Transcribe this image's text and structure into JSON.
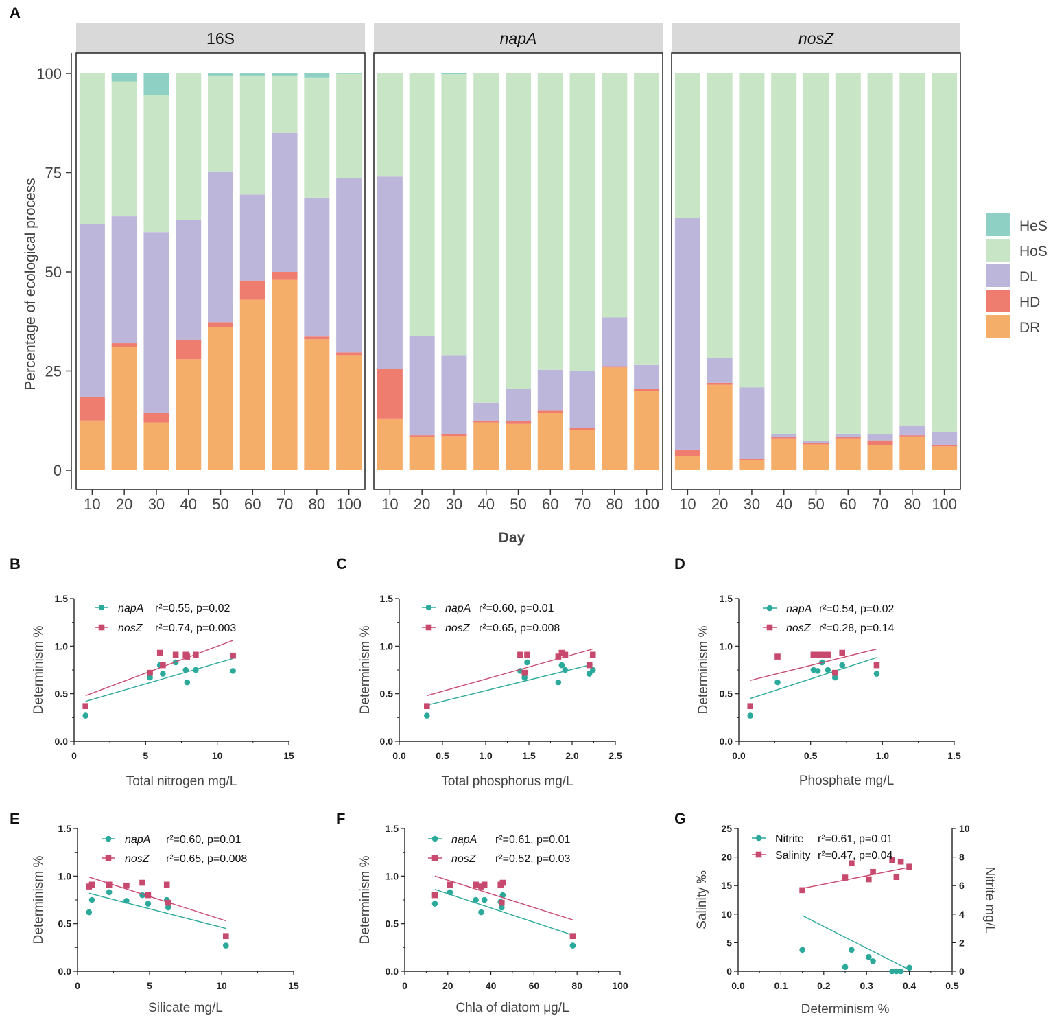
{
  "panel_labels": {
    "A": "A",
    "B": "B",
    "C": "C",
    "D": "D",
    "E": "E",
    "F": "F",
    "G": "G"
  },
  "colors": {
    "HeS": "#8ED0C4",
    "HoS": "#C8E5C6",
    "DL": "#BCB7DA",
    "HD": "#EE7D70",
    "DR": "#F5AD6A",
    "napA": "#2BA99B",
    "nosZ": "#C74A6E",
    "strip": "#d9d9d9"
  },
  "chart_data": [
    {
      "id": "A",
      "type": "bar",
      "stacked": true,
      "ylabel": "Percentage of ecological process",
      "xlabel": "Day",
      "ylim": [
        0,
        100
      ],
      "yticks": [
        "0",
        "25",
        "50",
        "75",
        "100"
      ],
      "categories": [
        "10",
        "20",
        "30",
        "40",
        "50",
        "60",
        "70",
        "80",
        "100"
      ],
      "legend": [
        "HeS",
        "HoS",
        "DL",
        "HD",
        "DR"
      ],
      "stack_order": [
        "DR",
        "HD",
        "DL",
        "HoS",
        "HeS"
      ],
      "facets": [
        {
          "title": "16S",
          "italic": false,
          "series": {
            "DR": [
              12.5,
              31,
              12,
              28,
              36,
              43,
              48,
              33,
              29
            ],
            "HD": [
              6,
              1,
              2.5,
              4.8,
              1.3,
              4.8,
              2,
              0.7,
              0.7
            ],
            "DL": [
              43.5,
              32,
              45.5,
              30.2,
              38,
              21.7,
              35,
              35,
              44
            ],
            "HoS": [
              38,
              34,
              34.5,
              37,
              24.2,
              30,
              14.5,
              30.3,
              26.2
            ],
            "HeS": [
              0,
              2,
              5.5,
              0,
              0.5,
              0.5,
              0.5,
              1,
              0.1
            ]
          }
        },
        {
          "title": "napA",
          "italic": true,
          "series": {
            "DR": [
              13,
              8.3,
              8.6,
              12,
              11.8,
              14.5,
              10.1,
              25.9,
              20
            ],
            "HD": [
              12.5,
              0.5,
              0.4,
              0.5,
              0.5,
              0.5,
              0.5,
              0.3,
              0.5
            ],
            "DL": [
              48.5,
              25,
              20,
              4.5,
              8.2,
              10.3,
              14.4,
              12.3,
              6
            ],
            "HoS": [
              26,
              66.2,
              70.8,
              83,
              79.5,
              74.7,
              75,
              61.5,
              73.5
            ],
            "HeS": [
              0,
              0,
              0.2,
              0,
              0,
              0,
              0,
              0,
              0
            ]
          }
        },
        {
          "title": "nosZ",
          "italic": true,
          "series": {
            "DR": [
              3.5,
              21.5,
              2.6,
              8,
              6.5,
              8,
              6.3,
              8.5,
              6
            ],
            "HD": [
              1.7,
              0.5,
              0.3,
              0.3,
              0.3,
              0.3,
              1.2,
              0.3,
              0.3
            ],
            "DL": [
              58.3,
              6.3,
              18,
              0.8,
              0.6,
              0.9,
              1.6,
              2.5,
              3.4
            ],
            "HoS": [
              36.5,
              71.7,
              79.1,
              90.9,
              92.6,
              90.8,
              90.9,
              88.7,
              90.3
            ],
            "HeS": [
              0,
              0,
              0,
              0,
              0,
              0,
              0,
              0,
              0
            ]
          }
        }
      ]
    },
    {
      "id": "B",
      "type": "scatter",
      "xlabel": "Total nitrogen mg/L",
      "ylabel": "Determinism %",
      "xlim": [
        0,
        15
      ],
      "ylim": [
        0,
        1.5
      ],
      "xticks": [
        "0",
        "5",
        "10",
        "15"
      ],
      "yticks": [
        "0.0",
        "0.5",
        "1.0",
        "1.5"
      ],
      "series": [
        {
          "name": "napA",
          "stat": "r²=0.55, p=0.02",
          "marker": "circle",
          "x": [
            0.8,
            5.3,
            6,
            6.2,
            7.1,
            7.8,
            7.9,
            8.5,
            11.1
          ],
          "y": [
            0.27,
            0.67,
            0.8,
            0.71,
            0.83,
            0.75,
            0.62,
            0.75,
            0.74
          ],
          "fit": [
            [
              0.8,
              0.42
            ],
            [
              11.1,
              0.87
            ]
          ]
        },
        {
          "name": "nosZ",
          "stat": "r²=0.74, p=0.003",
          "marker": "square",
          "x": [
            0.8,
            5.3,
            6,
            6.2,
            7.1,
            7.8,
            7.9,
            8.5,
            11.1
          ],
          "y": [
            0.37,
            0.72,
            0.93,
            0.8,
            0.91,
            0.91,
            0.89,
            0.91,
            0.9
          ],
          "fit": [
            [
              0.8,
              0.48
            ],
            [
              11.1,
              1.06
            ]
          ]
        }
      ]
    },
    {
      "id": "C",
      "type": "scatter",
      "xlabel": "Total phosphorus mg/L",
      "ylabel": "Determinism %",
      "xlim": [
        0,
        2.5
      ],
      "ylim": [
        0,
        1.5
      ],
      "xticks": [
        "0.0",
        "0.5",
        "1.0",
        "1.5",
        "2.0",
        "2.5"
      ],
      "yticks": [
        "0.0",
        "0.5",
        "1.0",
        "1.5"
      ],
      "series": [
        {
          "name": "napA",
          "stat": "r²=0.60, p=0.01",
          "marker": "circle",
          "x": [
            0.32,
            1.4,
            1.45,
            1.48,
            1.84,
            1.88,
            1.92,
            2.2,
            2.24
          ],
          "y": [
            0.27,
            0.74,
            0.67,
            0.83,
            0.62,
            0.8,
            0.75,
            0.71,
            0.75
          ],
          "fit": [
            [
              0.32,
              0.38
            ],
            [
              2.24,
              0.81
            ]
          ]
        },
        {
          "name": "nosZ",
          "stat": "r²=0.65, p=0.008",
          "marker": "square",
          "x": [
            0.32,
            1.4,
            1.45,
            1.48,
            1.84,
            1.88,
            1.92,
            2.2,
            2.24
          ],
          "y": [
            0.37,
            0.91,
            0.72,
            0.91,
            0.89,
            0.93,
            0.91,
            0.8,
            0.91
          ],
          "fit": [
            [
              0.32,
              0.48
            ],
            [
              2.24,
              0.97
            ]
          ]
        }
      ]
    },
    {
      "id": "D",
      "type": "scatter",
      "xlabel": "Phosphate  mg/L",
      "ylabel": "Determinism %",
      "xlim": [
        0,
        1.5
      ],
      "ylim": [
        0,
        1.5
      ],
      "xticks": [
        "0.0",
        "0.5",
        "1.0",
        "1.5"
      ],
      "yticks": [
        "0.0",
        "0.5",
        "1.0",
        "1.5"
      ],
      "series": [
        {
          "name": "napA",
          "stat": "r²=0.54, p=0.02",
          "marker": "circle",
          "x": [
            0.08,
            0.27,
            0.52,
            0.55,
            0.58,
            0.62,
            0.67,
            0.72,
            0.96
          ],
          "y": [
            0.27,
            0.62,
            0.75,
            0.74,
            0.83,
            0.75,
            0.67,
            0.8,
            0.71
          ],
          "fit": [
            [
              0.08,
              0.45
            ],
            [
              0.96,
              0.88
            ]
          ]
        },
        {
          "name": "nosZ",
          "stat": "r²=0.28, p=0.14",
          "marker": "square",
          "x": [
            0.08,
            0.27,
            0.52,
            0.55,
            0.58,
            0.62,
            0.67,
            0.72,
            0.96
          ],
          "y": [
            0.37,
            0.89,
            0.91,
            0.91,
            0.91,
            0.91,
            0.72,
            0.93,
            0.8
          ],
          "fit": [
            [
              0.08,
              0.64
            ],
            [
              0.96,
              0.97
            ]
          ]
        }
      ]
    },
    {
      "id": "E",
      "type": "scatter",
      "xlabel": "Silicate mg/L",
      "ylabel": "Determinism %",
      "xlim": [
        0,
        15
      ],
      "ylim": [
        0,
        1.5
      ],
      "xticks": [
        "0",
        "5",
        "10",
        "15"
      ],
      "yticks": [
        "0.0",
        "0.5",
        "1.0",
        "1.5"
      ],
      "series": [
        {
          "name": "napA",
          "stat": "r²=0.60, p=0.01",
          "marker": "circle",
          "x": [
            0.8,
            1,
            2.2,
            3.4,
            4.5,
            4.9,
            6.2,
            6.3,
            10.3
          ],
          "y": [
            0.62,
            0.75,
            0.83,
            0.74,
            0.8,
            0.71,
            0.75,
            0.67,
            0.27
          ],
          "fit": [
            [
              0.8,
              0.82
            ],
            [
              10.3,
              0.45
            ]
          ]
        },
        {
          "name": "nosZ",
          "stat": "r²=0.65, p=0.008",
          "marker": "square",
          "x": [
            0.8,
            1,
            2.2,
            3.4,
            4.5,
            4.9,
            6.2,
            6.3,
            10.3
          ],
          "y": [
            0.89,
            0.91,
            0.91,
            0.9,
            0.93,
            0.8,
            0.91,
            0.72,
            0.37
          ],
          "fit": [
            [
              0.8,
              0.99
            ],
            [
              10.3,
              0.53
            ]
          ]
        }
      ]
    },
    {
      "id": "F",
      "type": "scatter",
      "xlabel": "Chla of diatom μg/L",
      "ylabel": "Determinism %",
      "xlim": [
        0,
        100
      ],
      "ylim": [
        0,
        1.5
      ],
      "xticks": [
        "0",
        "20",
        "40",
        "60",
        "80",
        "100"
      ],
      "yticks": [
        "0.0",
        "0.5",
        "1.0",
        "1.5"
      ],
      "series": [
        {
          "name": "napA",
          "stat": "r²=0.61, p=0.01",
          "marker": "circle",
          "x": [
            14,
            21,
            33,
            35.5,
            37,
            44.5,
            45,
            45.5,
            78
          ],
          "y": [
            0.71,
            0.83,
            0.75,
            0.62,
            0.75,
            0.73,
            0.67,
            0.8,
            0.27
          ],
          "fit": [
            [
              14,
              0.86
            ],
            [
              78,
              0.38
            ]
          ]
        },
        {
          "name": "nosZ",
          "stat": "r²=0.52, p=0.03",
          "marker": "square",
          "x": [
            14,
            21,
            33,
            35.5,
            37,
            44.5,
            45,
            45.5,
            78
          ],
          "y": [
            0.8,
            0.91,
            0.91,
            0.89,
            0.91,
            0.91,
            0.72,
            0.93,
            0.37
          ],
          "fit": [
            [
              14,
              1.0
            ],
            [
              78,
              0.54
            ]
          ]
        }
      ]
    },
    {
      "id": "G",
      "type": "scatter",
      "xlabel": "Determinism %",
      "ylabel": "Salinity ‰",
      "ylabel_right": "Nitrite mg/L",
      "xlim": [
        0,
        0.5
      ],
      "ylim": [
        0,
        25
      ],
      "ylim_right": [
        0,
        10
      ],
      "xticks": [
        "0.0",
        "0.1",
        "0.2",
        "0.3",
        "0.4",
        "0.5"
      ],
      "yticks": [
        "0",
        "5",
        "10",
        "15",
        "20",
        "25"
      ],
      "yticks_right": [
        "0",
        "2",
        "4",
        "6",
        "8",
        "10"
      ],
      "series": [
        {
          "name": "Nitrite",
          "stat": "r²=0.61, p=0.01",
          "marker": "circle",
          "axis": "right",
          "x": [
            0.15,
            0.25,
            0.265,
            0.305,
            0.315,
            0.36,
            0.37,
            0.38,
            0.4
          ],
          "y": [
            1.5,
            0.3,
            1.5,
            1.0,
            0.7,
            0,
            0,
            0,
            0.25
          ],
          "fit": [
            [
              0.15,
              3.9
            ],
            [
              0.4,
              0.1
            ]
          ]
        },
        {
          "name": "Salinity",
          "stat": "r²=0.47, p=0.04",
          "marker": "square",
          "axis": "left",
          "x": [
            0.15,
            0.25,
            0.265,
            0.305,
            0.315,
            0.36,
            0.37,
            0.38,
            0.4
          ],
          "y": [
            14.2,
            16.4,
            18.9,
            16.1,
            17.4,
            19.5,
            16.5,
            19.2,
            18.3
          ],
          "fit": [
            [
              0.15,
              14.5
            ],
            [
              0.4,
              18.2
            ]
          ]
        }
      ]
    }
  ]
}
